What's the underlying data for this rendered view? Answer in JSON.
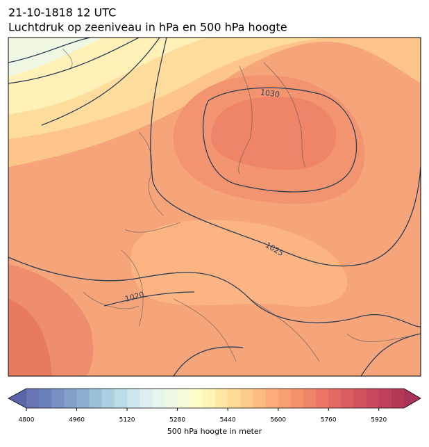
{
  "header": {
    "date": "21-10-1818 12 UTC",
    "title": "Luchtdruk op zeeniveau in hPa en 500 hPa hoogte"
  },
  "map": {
    "isobar_labels": [
      "1030",
      "1025",
      "1020"
    ]
  },
  "colorbar": {
    "label": "500 hPa hoogte in meter",
    "lim": [
      4800,
      6000
    ],
    "ticks": [
      4800,
      4960,
      5120,
      5280,
      5440,
      5600,
      5760,
      5920
    ],
    "colors": [
      "#6874b4",
      "#6e80ba",
      "#7890c2",
      "#82a0c8",
      "#8eb0d0",
      "#9cc0d8",
      "#acd0e0",
      "#bcdce8",
      "#cce6ee",
      "#dceff2",
      "#e6f5ee",
      "#eef8e4",
      "#f6fad8",
      "#fefcc8",
      "#fff4b8",
      "#fee8a6",
      "#fedc98",
      "#fdcc8a",
      "#fcbc80",
      "#fbac78",
      "#f8a072",
      "#f5926c",
      "#f08468",
      "#ea7864",
      "#e36a62",
      "#da5e60",
      "#d0525e",
      "#c8485c",
      "#be405a",
      "#b43858"
    ],
    "extend_colors": [
      "#5a64a8",
      "#a83258"
    ]
  }
}
